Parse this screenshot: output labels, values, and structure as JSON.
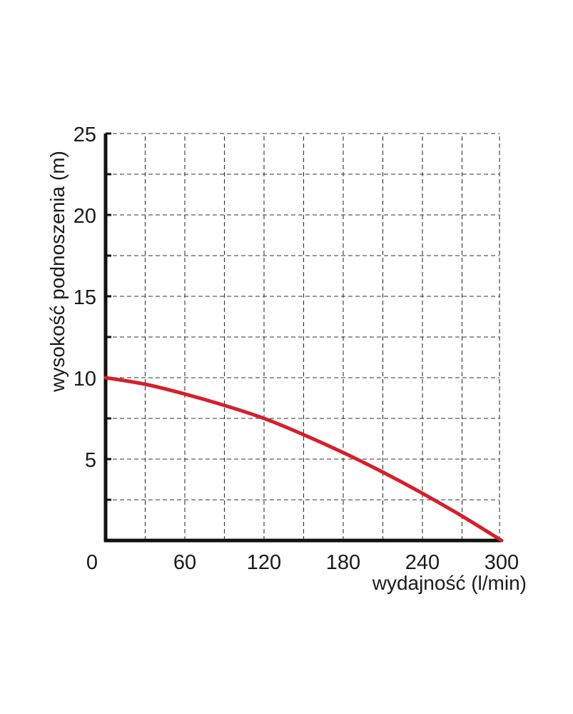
{
  "chart_data": {
    "type": "line",
    "title": "",
    "xlabel": "wydajność (l/min)",
    "ylabel": "wysokość podnoszenia (m)",
    "xlim": [
      0,
      300
    ],
    "ylim": [
      0,
      25
    ],
    "x_ticks": [
      0,
      60,
      120,
      180,
      240,
      300
    ],
    "x_tick_labels": [
      "0",
      "60",
      "120",
      "180",
      "240",
      "300"
    ],
    "y_ticks": [
      5,
      10,
      15,
      20,
      25
    ],
    "y_tick_labels": [
      "5",
      "10",
      "15",
      "20",
      "25"
    ],
    "grid": true,
    "grid_style": "dashed",
    "grid_x_step": 30,
    "grid_y_step": 2.5,
    "legend": "none",
    "series": [
      {
        "color": "#d4202c",
        "x": [
          0,
          30,
          60,
          90,
          120,
          150,
          180,
          210,
          240,
          270,
          300
        ],
        "y": [
          10,
          9.6,
          9.0,
          8.3,
          7.5,
          6.5,
          5.4,
          4.2,
          2.9,
          1.5,
          0
        ]
      }
    ]
  }
}
